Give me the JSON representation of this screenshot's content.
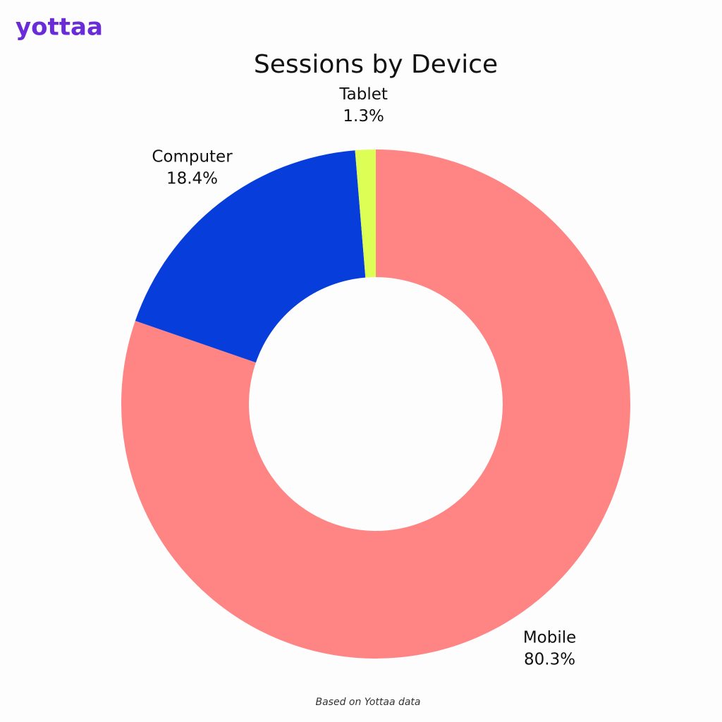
{
  "logo": "yottaa",
  "source": "Based on Yottaa data",
  "chart_data": {
    "type": "donut",
    "title": "Sessions by Device",
    "categories": [
      "Mobile",
      "Computer",
      "Tablet"
    ],
    "values": [
      80.3,
      18.4,
      1.3
    ],
    "value_labels": [
      "80.3%",
      "18.4%",
      "1.3%"
    ],
    "colors": [
      "#ff8585",
      "#073ddb",
      "#ddff55"
    ]
  }
}
